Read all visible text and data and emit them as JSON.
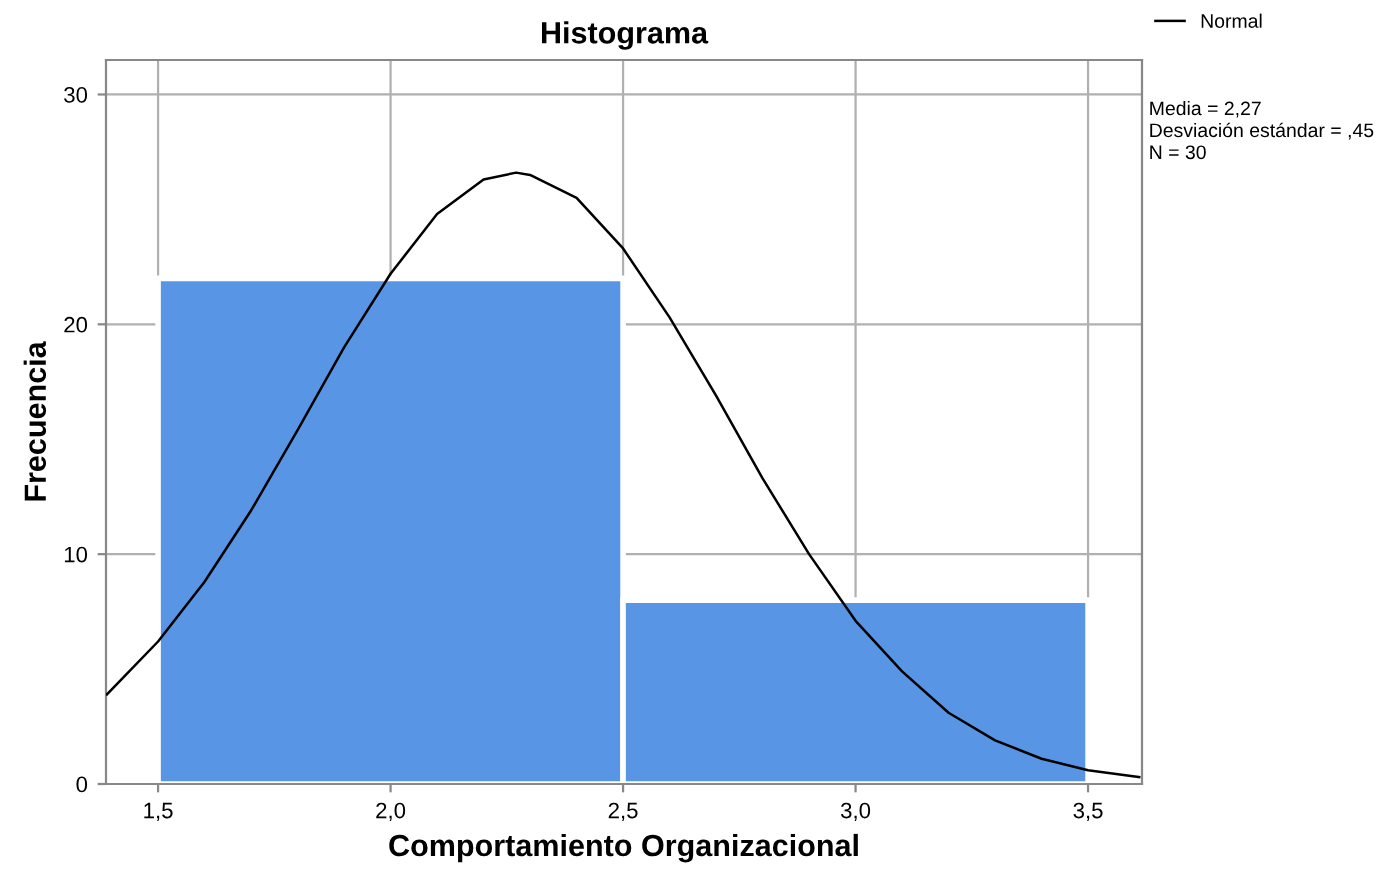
{
  "chart_data": {
    "type": "histogram",
    "title": "Histograma",
    "xlabel": "Comportamiento Organizacional",
    "ylabel": "Frecuencia",
    "bins": [
      1.5,
      2.5,
      3.5
    ],
    "values": [
      22,
      8
    ],
    "color": "#5896e5",
    "series": [
      {
        "type": "line",
        "name": "Normal",
        "color": "#000000",
        "x": [
          1.39,
          1.5,
          1.6,
          1.7,
          1.8,
          1.9,
          2.0,
          2.1,
          2.2,
          2.27,
          2.3,
          2.4,
          2.5,
          2.6,
          2.7,
          2.8,
          2.9,
          3.0,
          3.1,
          3.2,
          3.3,
          3.4,
          3.5,
          3.61
        ],
        "values": [
          3.9,
          6.2,
          8.8,
          11.9,
          15.4,
          19.0,
          22.2,
          24.8,
          26.3,
          26.6,
          26.5,
          25.5,
          23.3,
          20.3,
          16.9,
          13.3,
          10.0,
          7.1,
          4.9,
          3.1,
          1.9,
          1.1,
          0.6,
          0.3
        ]
      }
    ],
    "xlim": [
      1.388,
      3.616
    ],
    "ylim": [
      0,
      31.5
    ],
    "xticks": [
      {
        "value": 1.5,
        "label": "1,5"
      },
      {
        "value": 2.0,
        "label": "2,0"
      },
      {
        "value": 2.5,
        "label": "2,5"
      },
      {
        "value": 3.0,
        "label": "3,0"
      },
      {
        "value": 3.5,
        "label": "3,5"
      }
    ],
    "yticks": [
      0,
      10,
      20,
      30
    ],
    "grid": true,
    "legend": "top right",
    "annotations": [
      "Media = 2,27",
      "Desviación estándar = ,45",
      "N = 30"
    ]
  }
}
